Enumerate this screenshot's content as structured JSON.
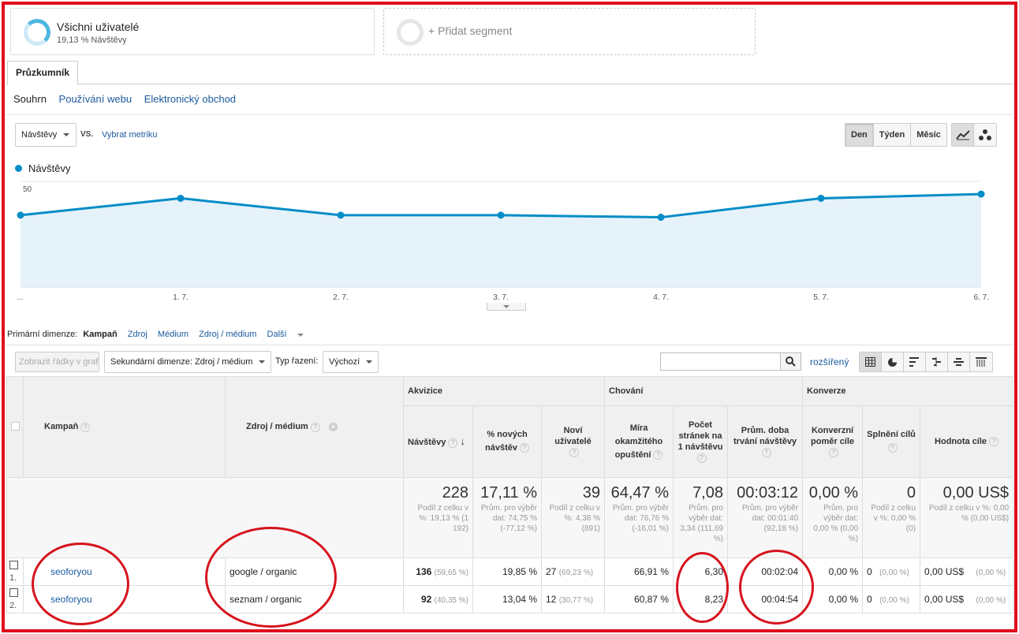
{
  "segments": {
    "first_title": "Všichni uživatelé",
    "first_sub": "19,13 % Návštěvy",
    "add_label": "+ Přidat segment"
  },
  "tab_label": "Průzkumník",
  "subnav": {
    "summary": "Souhrn",
    "web_usage": "Používání webu",
    "ecommerce": "Elektronický obchod"
  },
  "chart_controls": {
    "metric": "Návštěvy",
    "vs": "VS.",
    "choose_metric": "Vybrat metriku",
    "periods": [
      "Den",
      "Týden",
      "Měsíc"
    ],
    "active_period": "Den"
  },
  "legend_label": "Návštěvy",
  "chart_data": {
    "type": "area",
    "series": [
      {
        "name": "Návštěvy",
        "values": [
          34,
          42,
          34,
          34,
          33,
          42,
          44
        ]
      }
    ],
    "x": [
      "...",
      "1. 7.",
      "2. 7.",
      "3. 7.",
      "4. 7.",
      "5. 7.",
      "6. 7."
    ],
    "yticks": [
      "50",
      "25"
    ],
    "ylim": [
      0,
      50
    ],
    "color": "#058dc7",
    "fill": "#e5f2fa"
  },
  "dimensions": {
    "label": "Primární dimenze:",
    "active": "Kampaň",
    "items": [
      "Zdroj",
      "Médium",
      "Zdroj / médium"
    ],
    "more": "Další"
  },
  "toolbar": {
    "plot_rows": "Zobrazit řádky v grafu",
    "secondary": "Sekundární dimenze: Zdroj / médium",
    "sort_label": "Typ řazení:",
    "sort_value": "Výchozí",
    "advanced": "rozšířený",
    "search_placeholder": ""
  },
  "table": {
    "groups": {
      "acq": "Akvizice",
      "beh": "Chování",
      "conv": "Konverze"
    },
    "headers": {
      "campaign": "Kampaň",
      "source": "Zdroj / médium",
      "visits": "Návštěvy",
      "new_pct": "% nových návštěv",
      "new_users": "Noví uživatelé",
      "bounce": "Míra okamžitého opuštění",
      "pages": "Počet stránek na 1 návštěvu",
      "duration": "Prům. doba trvání návštěvy",
      "conv_rate": "Konverzní poměr cíle",
      "completions": "Splnění cílů",
      "value": "Hodnota cíle"
    },
    "totals": {
      "visits": "228",
      "visits_sub": "Podíl z celku v %: 19,13 % (1 192)",
      "new_pct": "17,11 %",
      "new_pct_sub": "Prům. pro výběr dat: 74,75 % (-77,12 %)",
      "new_users": "39",
      "new_users_sub": "Podíl z celku v %: 4,38 % (891)",
      "bounce": "64,47 %",
      "bounce_sub": "Prům. pro výběr dat: 76,76 % (-16,01 %)",
      "pages": "7,08",
      "pages_sub": "Prům. pro výběr dat: 3,34 (111,69 %)",
      "duration": "00:03:12",
      "duration_sub": "Prům. pro výběr dat: 00:01:40 (92,18 %)",
      "conv_rate": "0,00 %",
      "conv_rate_sub": "Prům. pro výběr dat: 0,00 % (0,00 %)",
      "completions": "0",
      "completions_sub": "Podíl z celku v %: 0,00 % (0)",
      "value": "0,00 US$",
      "value_sub": "Podíl z celku v %: 0,00 % (0,00 US$)"
    },
    "rows": [
      {
        "idx": "1.",
        "campaign": "seoforyou",
        "source": "google / organic",
        "visits": "136",
        "visits_pct": "(59,65 %)",
        "new_pct": "19,85 %",
        "new_users": "27",
        "new_users_pct": "(69,23 %)",
        "bounce": "66,91 %",
        "pages": "6,30",
        "duration": "00:02:04",
        "conv_rate": "0,00 %",
        "completions": "0",
        "completions_pct": "(0,00 %)",
        "value": "0,00 US$",
        "value_pct": "(0,00 %)"
      },
      {
        "idx": "2.",
        "campaign": "seoforyou",
        "source": "seznam / organic",
        "visits": "92",
        "visits_pct": "(40,35 %)",
        "new_pct": "13,04 %",
        "new_users": "12",
        "new_users_pct": "(30,77 %)",
        "bounce": "60,87 %",
        "pages": "8,23",
        "duration": "00:04:54",
        "conv_rate": "0,00 %",
        "completions": "0",
        "completions_pct": "(0,00 %)",
        "value": "0,00 US$",
        "value_pct": "(0,00 %)"
      }
    ]
  }
}
